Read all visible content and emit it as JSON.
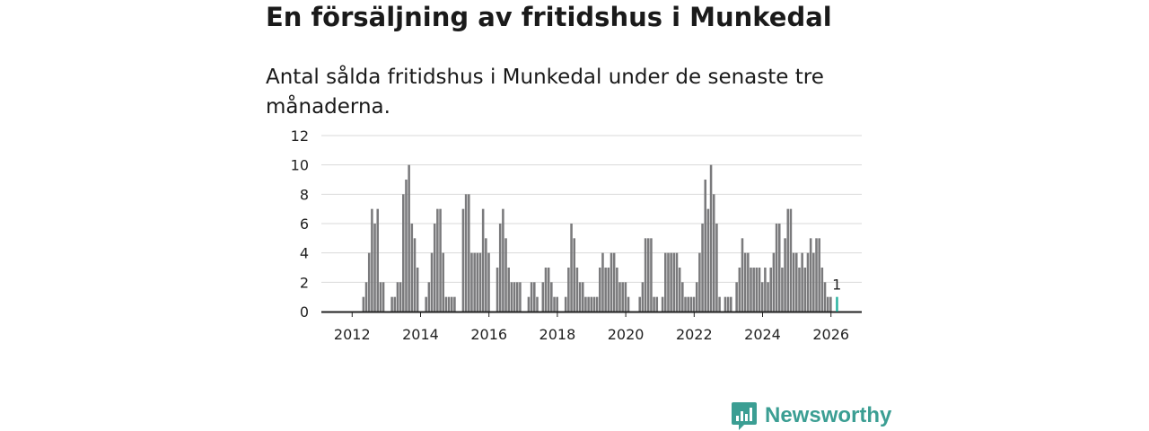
{
  "header": {
    "title": "En försäljning av fritidshus i Munkedal",
    "subtitle": "Antal sålda fritidshus i Munkedal under de senaste tre månaderna."
  },
  "brand": {
    "name": "Newsworthy",
    "color": "#3b9e93"
  },
  "colors": {
    "bar": "#7a7a7c",
    "highlight": "#2ab3a1",
    "grid": "#d9d9d9",
    "axis": "#222222"
  },
  "chart_data": {
    "type": "bar",
    "title": "Antal sålda fritidshus i Munkedal under de senaste tre månaderna.",
    "xlabel": "",
    "ylabel": "",
    "ylim": [
      0,
      12
    ],
    "y_ticks": [
      0,
      2,
      4,
      6,
      8,
      10,
      12
    ],
    "x_ticks": [
      "2012",
      "2014",
      "2016",
      "2018",
      "2020",
      "2022",
      "2024",
      "2026"
    ],
    "x_tick_values": [
      2012,
      2014,
      2016,
      2018,
      2020,
      2022,
      2024,
      2026
    ],
    "xlim": [
      2011.1,
      2026.9
    ],
    "start": 2012.33,
    "step": 0.0833,
    "values": [
      1,
      2,
      4,
      7,
      6,
      7,
      2,
      2,
      0,
      0,
      1,
      1,
      2,
      2,
      8,
      9,
      10,
      6,
      5,
      3,
      0,
      0,
      1,
      2,
      4,
      6,
      7,
      7,
      4,
      1,
      1,
      1,
      1,
      0,
      0,
      7,
      8,
      8,
      4,
      4,
      4,
      4,
      7,
      5,
      4,
      0,
      0,
      3,
      6,
      7,
      5,
      3,
      2,
      2,
      2,
      2,
      0,
      0,
      1,
      2,
      2,
      1,
      0,
      2,
      3,
      3,
      2,
      1,
      1,
      0,
      0,
      1,
      3,
      6,
      5,
      3,
      2,
      2,
      1,
      1,
      1,
      1,
      1,
      3,
      4,
      3,
      3,
      4,
      4,
      3,
      2,
      2,
      2,
      1,
      0,
      0,
      0,
      1,
      2,
      5,
      5,
      5,
      1,
      1,
      0,
      1,
      4,
      4,
      4,
      4,
      4,
      3,
      2,
      1,
      1,
      1,
      1,
      2,
      4,
      6,
      9,
      7,
      10,
      8,
      6,
      1,
      0,
      1,
      1,
      1,
      0,
      2,
      3,
      5,
      4,
      4,
      3,
      3,
      3,
      3,
      2,
      3,
      2,
      3,
      4,
      6,
      6,
      3,
      5,
      7,
      7,
      4,
      4,
      3,
      4,
      3,
      4,
      5,
      4,
      5,
      5,
      3,
      2,
      1,
      1
    ],
    "highlight": {
      "value": 1,
      "label": "1",
      "x": 2026.17
    }
  }
}
